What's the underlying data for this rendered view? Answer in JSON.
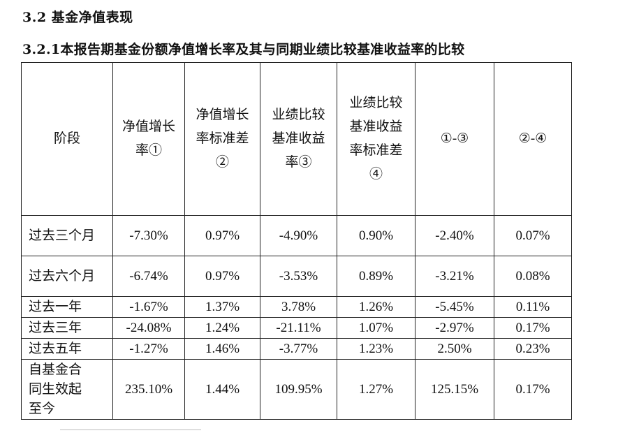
{
  "section_title": "3.2 基金净值表现",
  "subsection_title": "3.2.1本报告期基金份额净值增长率及其与同期业绩比较基准收益率的比较",
  "table": {
    "headers": [
      "阶段",
      "净值增长率①",
      "净值增长率标准差②",
      "业绩比较基准收益率③",
      "业绩比较基准收益率标准差④",
      "①-③",
      "②-④"
    ],
    "rows": [
      {
        "period": "过去三个月",
        "values": [
          "-7.30%",
          "0.97%",
          "-4.90%",
          "0.90%",
          "-2.40%",
          "0.07%"
        ]
      },
      {
        "period": "过去六个月",
        "values": [
          "-6.74%",
          "0.97%",
          "-3.53%",
          "0.89%",
          "-3.21%",
          "0.08%"
        ]
      },
      {
        "period": "过去一年",
        "values": [
          "-1.67%",
          "1.37%",
          "3.78%",
          "1.26%",
          "-5.45%",
          "0.11%"
        ]
      },
      {
        "period": "过去三年",
        "values": [
          "-24.08%",
          "1.24%",
          "-21.11%",
          "1.07%",
          "-2.97%",
          "0.17%"
        ]
      },
      {
        "period": "过去五年",
        "values": [
          "-1.27%",
          "1.46%",
          "-3.77%",
          "1.23%",
          "2.50%",
          "0.23%"
        ]
      },
      {
        "period": "自基金合同生效起至今",
        "values": [
          "235.10%",
          "1.44%",
          "109.95%",
          "1.27%",
          "125.15%",
          "0.17%"
        ]
      }
    ]
  }
}
